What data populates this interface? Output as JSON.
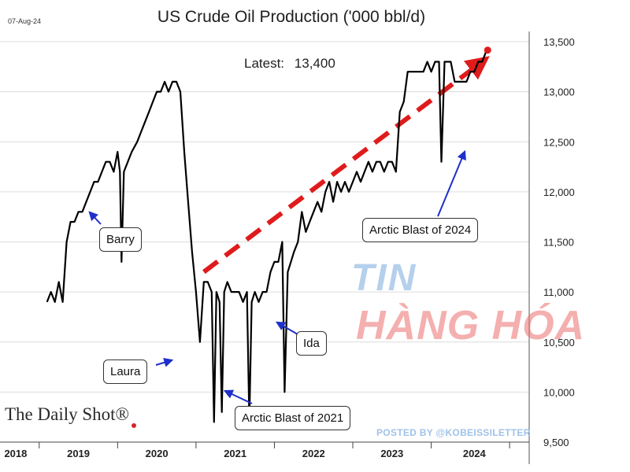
{
  "date_stamp": "07-Aug-24",
  "latest": {
    "label": "Latest:",
    "value": "13,400"
  },
  "brand": "The Daily Shot®",
  "watermark": "POSTED BY @KOBEISSILETTER",
  "overlay": {
    "word1": "TIN",
    "word2": "HÀNG HÓA"
  },
  "colors": {
    "line": "#000000",
    "trend_arrow": "#e01b1b",
    "callout_arrow": "#1f2fc9",
    "endpoint": "#e01b1b"
  },
  "chart_data": {
    "type": "line",
    "title": "US Crude Oil Production ('000 bbl/d)",
    "xlabel": "",
    "ylabel": "",
    "ylim": [
      9500,
      13500
    ],
    "y_ticks": [
      "9,500",
      "10,000",
      "10,500",
      "11,000",
      "11,500",
      "12,000",
      "12,500",
      "13,000",
      "13,500"
    ],
    "y_tick_values": [
      9500,
      10000,
      10500,
      11000,
      11500,
      12000,
      12500,
      13000,
      13500
    ],
    "x_tick_labels": [
      "2018",
      "2019",
      "2020",
      "2021",
      "2022",
      "2023",
      "2024"
    ],
    "grid": true,
    "legend": "none",
    "series": [
      {
        "values": [
          [
            2018.55,
            10900
          ],
          [
            2018.6,
            11000
          ],
          [
            2018.65,
            10900
          ],
          [
            2018.7,
            11100
          ],
          [
            2018.75,
            10900
          ],
          [
            2018.8,
            11500
          ],
          [
            2018.85,
            11700
          ],
          [
            2018.9,
            11700
          ],
          [
            2018.95,
            11800
          ],
          [
            2019.0,
            11800
          ],
          [
            2019.05,
            11900
          ],
          [
            2019.1,
            12000
          ],
          [
            2019.15,
            12100
          ],
          [
            2019.2,
            12100
          ],
          [
            2019.25,
            12200
          ],
          [
            2019.3,
            12300
          ],
          [
            2019.35,
            12300
          ],
          [
            2019.4,
            12200
          ],
          [
            2019.45,
            12400
          ],
          [
            2019.48,
            12200
          ],
          [
            2019.5,
            11300
          ],
          [
            2019.53,
            12200
          ],
          [
            2019.58,
            12300
          ],
          [
            2019.63,
            12400
          ],
          [
            2019.7,
            12500
          ],
          [
            2019.75,
            12600
          ],
          [
            2019.8,
            12700
          ],
          [
            2019.85,
            12800
          ],
          [
            2019.9,
            12900
          ],
          [
            2019.95,
            13000
          ],
          [
            2020.0,
            13000
          ],
          [
            2020.05,
            13100
          ],
          [
            2020.1,
            13000
          ],
          [
            2020.15,
            13100
          ],
          [
            2020.2,
            13100
          ],
          [
            2020.25,
            13000
          ],
          [
            2020.3,
            12400
          ],
          [
            2020.35,
            11900
          ],
          [
            2020.4,
            11400
          ],
          [
            2020.45,
            11000
          ],
          [
            2020.5,
            10500
          ],
          [
            2020.55,
            11100
          ],
          [
            2020.6,
            11100
          ],
          [
            2020.65,
            11000
          ],
          [
            2020.68,
            9700
          ],
          [
            2020.71,
            11000
          ],
          [
            2020.75,
            10900
          ],
          [
            2020.78,
            9800
          ],
          [
            2020.81,
            11000
          ],
          [
            2020.85,
            11100
          ],
          [
            2020.9,
            11000
          ],
          [
            2020.95,
            11000
          ],
          [
            2021.0,
            11000
          ],
          [
            2021.05,
            10900
          ],
          [
            2021.1,
            11000
          ],
          [
            2021.13,
            9700
          ],
          [
            2021.16,
            10900
          ],
          [
            2021.2,
            11000
          ],
          [
            2021.25,
            10900
          ],
          [
            2021.3,
            11000
          ],
          [
            2021.35,
            11000
          ],
          [
            2021.4,
            11200
          ],
          [
            2021.45,
            11300
          ],
          [
            2021.5,
            11300
          ],
          [
            2021.55,
            11500
          ],
          [
            2021.58,
            10000
          ],
          [
            2021.62,
            11200
          ],
          [
            2021.66,
            11300
          ],
          [
            2021.7,
            11400
          ],
          [
            2021.75,
            11500
          ],
          [
            2021.8,
            11800
          ],
          [
            2021.85,
            11600
          ],
          [
            2021.9,
            11700
          ],
          [
            2021.95,
            11800
          ],
          [
            2022.0,
            11900
          ],
          [
            2022.05,
            11800
          ],
          [
            2022.1,
            12000
          ],
          [
            2022.15,
            12100
          ],
          [
            2022.2,
            11900
          ],
          [
            2022.25,
            12100
          ],
          [
            2022.3,
            12000
          ],
          [
            2022.35,
            12100
          ],
          [
            2022.4,
            12000
          ],
          [
            2022.45,
            12100
          ],
          [
            2022.5,
            12200
          ],
          [
            2022.55,
            12100
          ],
          [
            2022.6,
            12200
          ],
          [
            2022.65,
            12300
          ],
          [
            2022.7,
            12200
          ],
          [
            2022.75,
            12300
          ],
          [
            2022.8,
            12300
          ],
          [
            2022.85,
            12200
          ],
          [
            2022.9,
            12300
          ],
          [
            2022.95,
            12300
          ],
          [
            2023.0,
            12200
          ],
          [
            2023.05,
            12800
          ],
          [
            2023.1,
            12900
          ],
          [
            2023.15,
            13200
          ],
          [
            2023.2,
            13200
          ],
          [
            2023.25,
            13200
          ],
          [
            2023.3,
            13200
          ],
          [
            2023.35,
            13200
          ],
          [
            2023.4,
            13300
          ],
          [
            2023.45,
            13200
          ],
          [
            2023.5,
            13300
          ],
          [
            2023.55,
            13300
          ],
          [
            2023.58,
            12300
          ],
          [
            2023.62,
            13300
          ],
          [
            2023.65,
            13300
          ],
          [
            2023.7,
            13300
          ],
          [
            2023.75,
            13100
          ],
          [
            2023.8,
            13100
          ],
          [
            2023.85,
            13100
          ],
          [
            2023.9,
            13100
          ],
          [
            2023.95,
            13200
          ],
          [
            2024.0,
            13200
          ],
          [
            2024.05,
            13300
          ],
          [
            2024.1,
            13300
          ],
          [
            2024.15,
            13400
          ]
        ]
      }
    ],
    "annotations": [
      {
        "label": "Barry",
        "x": 2019.5,
        "y": 11300
      },
      {
        "label": "Laura",
        "x": 2020.55,
        "y": 10200
      },
      {
        "label": "Arctic Blast of 2021",
        "x": 2021.13,
        "y": 9700
      },
      {
        "label": "Ida",
        "x": 2021.58,
        "y": 10000
      },
      {
        "label": "Arctic Blast of 2024",
        "x": 2023.58,
        "y": 12300
      }
    ],
    "trend_arrow": {
      "from": [
        2020.55,
        11200
      ],
      "to": [
        2024.1,
        13300
      ]
    }
  }
}
